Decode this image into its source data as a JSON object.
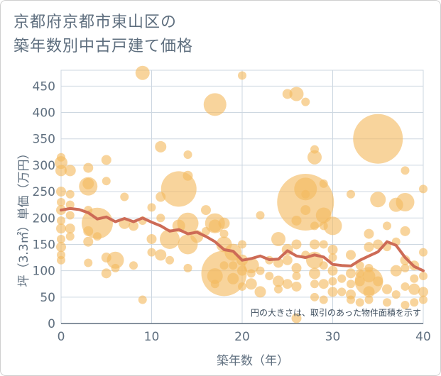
{
  "title_lines": [
    "京都府京都市東山区の",
    "築年数別中古戸建て価格"
  ],
  "chart_data": {
    "type": "scatter",
    "title": "京都府京都市東山区の築年数別中古戸建て価格",
    "xlabel": "築年数（年）",
    "ylabel": "坪（3.3㎡）単価（万円）",
    "note": "円の大きさは、取引のあった物件面積を示す",
    "xlim": [
      0,
      40
    ],
    "ylim": [
      0,
      480
    ],
    "x_ticks": [
      0,
      10,
      20,
      30,
      40
    ],
    "y_ticks": [
      0,
      50,
      100,
      150,
      200,
      250,
      300,
      350,
      400,
      450
    ],
    "grid": true,
    "colors": {
      "bubble": "#f3b95f",
      "trend": "#cd6b56",
      "grid": "#cdd7e1",
      "axis": "#5f6f7f"
    },
    "bubbles": [
      [
        0,
        305,
        9
      ],
      [
        0,
        290,
        8
      ],
      [
        0,
        250,
        7
      ],
      [
        0,
        230,
        6
      ],
      [
        0,
        215,
        7
      ],
      [
        0,
        195,
        6
      ],
      [
        0,
        180,
        7
      ],
      [
        0,
        160,
        6
      ],
      [
        0,
        145,
        7
      ],
      [
        0,
        130,
        6
      ],
      [
        0,
        120,
        6
      ],
      [
        0,
        315,
        6
      ],
      [
        1,
        290,
        8
      ],
      [
        1,
        245,
        6
      ],
      [
        1,
        225,
        6
      ],
      [
        1,
        205,
        6
      ],
      [
        1,
        180,
        7
      ],
      [
        1,
        165,
        6
      ],
      [
        3,
        295,
        7
      ],
      [
        3,
        265,
        8
      ],
      [
        3,
        260,
        13
      ],
      [
        3,
        215,
        6
      ],
      [
        3,
        175,
        7
      ],
      [
        3,
        155,
        7
      ],
      [
        3,
        115,
        6
      ],
      [
        4,
        190,
        22
      ],
      [
        4,
        165,
        6
      ],
      [
        5,
        310,
        7
      ],
      [
        5,
        270,
        6
      ],
      [
        5,
        125,
        7
      ],
      [
        5,
        95,
        7
      ],
      [
        6,
        120,
        12
      ],
      [
        6,
        105,
        6
      ],
      [
        7,
        190,
        8
      ],
      [
        7,
        240,
        6
      ],
      [
        8,
        185,
        7
      ],
      [
        8,
        110,
        6
      ],
      [
        9,
        475,
        10
      ],
      [
        9,
        195,
        6
      ],
      [
        9,
        45,
        6
      ],
      [
        10,
        220,
        6
      ],
      [
        10,
        160,
        7
      ],
      [
        10,
        135,
        6
      ],
      [
        11,
        335,
        8
      ],
      [
        11,
        240,
        7
      ],
      [
        11,
        200,
        6
      ],
      [
        11,
        130,
        8
      ],
      [
        12,
        160,
        14
      ],
      [
        12,
        120,
        6
      ],
      [
        13,
        255,
        25
      ],
      [
        13,
        185,
        9
      ],
      [
        14,
        320,
        6
      ],
      [
        14,
        280,
        7
      ],
      [
        14,
        190,
        15
      ],
      [
        14,
        150,
        14
      ],
      [
        14,
        105,
        6
      ],
      [
        15,
        165,
        9
      ],
      [
        16,
        215,
        7
      ],
      [
        16,
        175,
        6
      ],
      [
        17,
        415,
        16
      ],
      [
        17,
        190,
        14
      ],
      [
        17,
        185,
        9
      ],
      [
        17,
        90,
        11
      ],
      [
        17,
        75,
        6
      ],
      [
        18,
        190,
        8
      ],
      [
        18,
        170,
        6
      ],
      [
        18,
        150,
        11
      ],
      [
        18,
        110,
        6
      ],
      [
        18,
        95,
        32
      ],
      [
        19,
        135,
        12
      ],
      [
        19,
        110,
        6
      ],
      [
        19,
        85,
        8
      ],
      [
        20,
        470,
        6
      ],
      [
        20,
        150,
        6
      ],
      [
        20,
        120,
        8
      ],
      [
        20,
        100,
        7
      ],
      [
        20,
        70,
        6
      ],
      [
        21,
        110,
        11
      ],
      [
        21,
        95,
        6
      ],
      [
        21,
        75,
        8
      ],
      [
        22,
        205,
        6
      ],
      [
        22,
        100,
        6
      ],
      [
        22,
        60,
        8
      ],
      [
        23,
        120,
        6
      ],
      [
        23,
        90,
        6
      ],
      [
        24,
        160,
        10
      ],
      [
        24,
        115,
        7
      ],
      [
        24,
        80,
        8
      ],
      [
        24,
        65,
        6
      ],
      [
        25,
        435,
        7
      ],
      [
        25,
        140,
        8
      ],
      [
        25,
        120,
        7
      ],
      [
        25,
        75,
        7
      ],
      [
        26,
        435,
        10
      ],
      [
        26,
        195,
        7
      ],
      [
        26,
        150,
        7
      ],
      [
        26,
        105,
        7
      ],
      [
        26,
        90,
        6
      ],
      [
        26,
        70,
        7
      ],
      [
        26,
        10,
        7
      ],
      [
        27,
        420,
        6
      ],
      [
        27,
        255,
        16
      ],
      [
        27,
        245,
        6
      ],
      [
        27,
        230,
        40
      ],
      [
        27,
        215,
        7
      ],
      [
        27,
        130,
        6
      ],
      [
        28,
        330,
        6
      ],
      [
        28,
        315,
        10
      ],
      [
        28,
        185,
        6
      ],
      [
        28,
        150,
        7
      ],
      [
        28,
        120,
        12
      ],
      [
        28,
        95,
        8
      ],
      [
        28,
        75,
        6
      ],
      [
        28,
        50,
        6
      ],
      [
        29,
        265,
        6
      ],
      [
        29,
        205,
        11
      ],
      [
        29,
        185,
        6
      ],
      [
        29,
        150,
        6
      ],
      [
        29,
        110,
        6
      ],
      [
        29,
        75,
        7
      ],
      [
        29,
        45,
        6
      ],
      [
        30,
        185,
        13
      ],
      [
        30,
        140,
        7
      ],
      [
        30,
        125,
        6
      ],
      [
        30,
        100,
        7
      ],
      [
        30,
        80,
        6
      ],
      [
        30,
        60,
        7
      ],
      [
        31,
        85,
        6
      ],
      [
        31,
        60,
        6
      ],
      [
        32,
        245,
        6
      ],
      [
        32,
        130,
        7
      ],
      [
        32,
        95,
        7
      ],
      [
        32,
        75,
        6
      ],
      [
        32,
        55,
        7
      ],
      [
        32,
        45,
        6
      ],
      [
        33,
        110,
        6
      ],
      [
        33,
        95,
        6
      ],
      [
        33,
        80,
        7
      ],
      [
        33,
        40,
        6
      ],
      [
        34,
        170,
        7
      ],
      [
        34,
        145,
        7
      ],
      [
        34,
        105,
        6
      ],
      [
        34,
        90,
        9
      ],
      [
        34,
        80,
        20
      ],
      [
        34,
        60,
        8
      ],
      [
        34,
        45,
        6
      ],
      [
        35,
        350,
        35
      ],
      [
        35,
        235,
        11
      ],
      [
        35,
        150,
        7
      ],
      [
        35,
        80,
        7
      ],
      [
        36,
        185,
        6
      ],
      [
        36,
        145,
        6
      ],
      [
        36,
        65,
        7
      ],
      [
        36,
        40,
        6
      ],
      [
        37,
        225,
        10
      ],
      [
        37,
        155,
        6
      ],
      [
        37,
        100,
        8
      ],
      [
        37,
        55,
        6
      ],
      [
        38,
        290,
        6
      ],
      [
        38,
        230,
        13
      ],
      [
        38,
        175,
        7
      ],
      [
        38,
        120,
        7
      ],
      [
        38,
        105,
        6
      ],
      [
        38,
        70,
        6
      ],
      [
        38,
        35,
        6
      ],
      [
        39,
        110,
        7
      ],
      [
        39,
        85,
        6
      ],
      [
        39,
        65,
        8
      ],
      [
        39,
        40,
        6
      ],
      [
        40,
        255,
        6
      ],
      [
        40,
        135,
        6
      ],
      [
        40,
        90,
        6
      ],
      [
        40,
        60,
        7
      ],
      [
        40,
        45,
        6
      ]
    ],
    "trend": [
      [
        0,
        215
      ],
      [
        1,
        218
      ],
      [
        2,
        216
      ],
      [
        3,
        210
      ],
      [
        4,
        198
      ],
      [
        5,
        202
      ],
      [
        6,
        193
      ],
      [
        7,
        199
      ],
      [
        8,
        193
      ],
      [
        9,
        200
      ],
      [
        10,
        192
      ],
      [
        11,
        185
      ],
      [
        12,
        175
      ],
      [
        13,
        178
      ],
      [
        14,
        170
      ],
      [
        15,
        173
      ],
      [
        16,
        165
      ],
      [
        17,
        155
      ],
      [
        18,
        140
      ],
      [
        19,
        137
      ],
      [
        20,
        120
      ],
      [
        21,
        123
      ],
      [
        22,
        128
      ],
      [
        23,
        121
      ],
      [
        24,
        122
      ],
      [
        25,
        138
      ],
      [
        26,
        128
      ],
      [
        27,
        125
      ],
      [
        28,
        130
      ],
      [
        29,
        126
      ],
      [
        30,
        112
      ],
      [
        31,
        110
      ],
      [
        32,
        109
      ],
      [
        33,
        120
      ],
      [
        34,
        128
      ],
      [
        35,
        136
      ],
      [
        36,
        155
      ],
      [
        37,
        148
      ],
      [
        38,
        125
      ],
      [
        39,
        108
      ],
      [
        40,
        100
      ]
    ]
  }
}
